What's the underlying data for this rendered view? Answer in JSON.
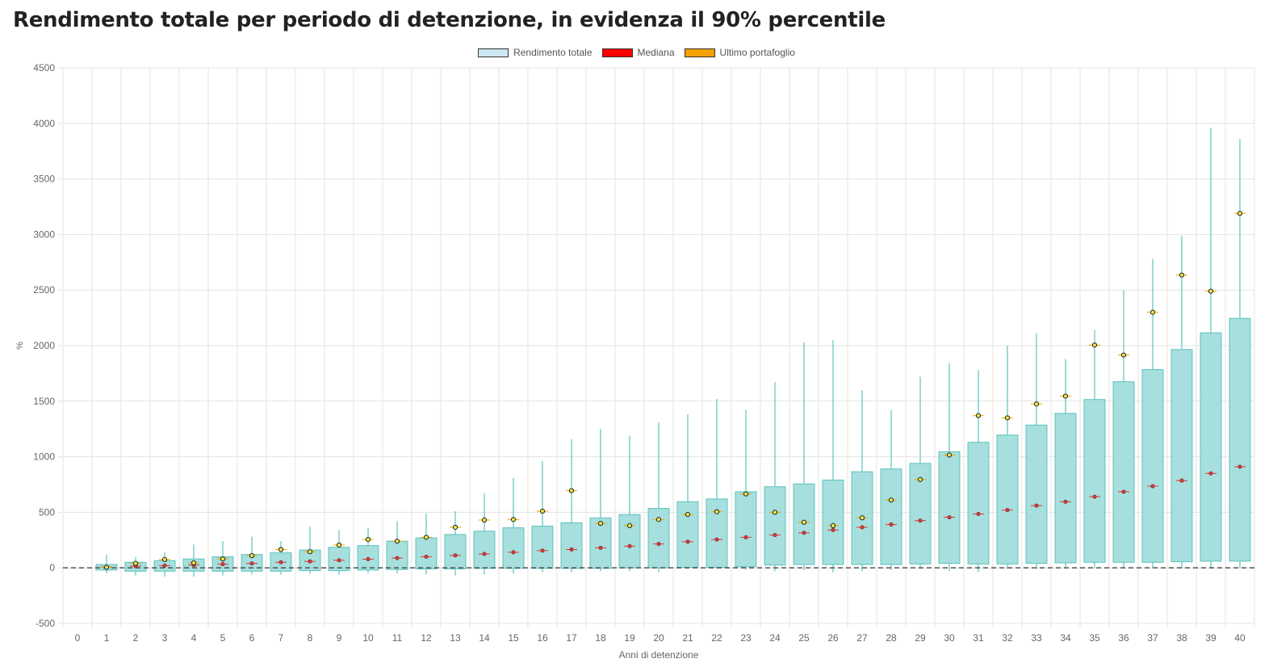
{
  "page": {
    "title": "Rendimento totale per periodo di detenzione, in evidenza il 90% percentile"
  },
  "colors": {
    "box_fill": "#a6dfdd",
    "box_stroke": "#5cc3bd",
    "whisker": "#5cc3bd",
    "median": "#d73a3a",
    "last_portfolio": "#f5a100",
    "grid": "#e3e3e3",
    "zero_line": "#444444"
  },
  "legend": {
    "items": [
      {
        "label": "Rendimento totale",
        "color": "#cde8f0"
      },
      {
        "label": "Mediana",
        "color": "#ff0000"
      },
      {
        "label": "Ultimo portafoglio",
        "color": "#f5a100"
      }
    ]
  },
  "chart_data": {
    "type": "boxplot",
    "xlabel": "Anni di detenzione",
    "ylabel": "%",
    "ylim": [
      -500,
      4500
    ],
    "yticks": [
      -500,
      0,
      500,
      1000,
      1500,
      2000,
      2500,
      3000,
      3500,
      4000,
      4500
    ],
    "categories": [
      0,
      1,
      2,
      3,
      4,
      5,
      6,
      7,
      8,
      9,
      10,
      11,
      12,
      13,
      14,
      15,
      16,
      17,
      18,
      19,
      20,
      21,
      22,
      23,
      24,
      25,
      26,
      27,
      28,
      29,
      30,
      31,
      32,
      33,
      34,
      35,
      36,
      37,
      38,
      39,
      40
    ],
    "grid": true,
    "legend_position": "top-center",
    "zero_line": "dashed",
    "series": [
      {
        "x": 1,
        "box_low": -20,
        "box_high": 30,
        "whisker_low": -50,
        "whisker_high": 120,
        "median": 8,
        "last": 5
      },
      {
        "x": 2,
        "box_low": -30,
        "box_high": 50,
        "whisker_low": -70,
        "whisker_high": 100,
        "median": 15,
        "last": 40
      },
      {
        "x": 3,
        "box_low": -30,
        "box_high": 65,
        "whisker_low": -80,
        "whisker_high": 140,
        "median": 20,
        "last": 75
      },
      {
        "x": 4,
        "box_low": -30,
        "box_high": 80,
        "whisker_low": -80,
        "whisker_high": 210,
        "median": 25,
        "last": 45
      },
      {
        "x": 5,
        "box_low": -30,
        "box_high": 100,
        "whisker_low": -70,
        "whisker_high": 240,
        "median": 33,
        "last": 80
      },
      {
        "x": 6,
        "box_low": -30,
        "box_high": 120,
        "whisker_low": -60,
        "whisker_high": 280,
        "median": 40,
        "last": 110
      },
      {
        "x": 7,
        "box_low": -30,
        "box_high": 135,
        "whisker_low": -60,
        "whisker_high": 240,
        "median": 50,
        "last": 165
      },
      {
        "x": 8,
        "box_low": -25,
        "box_high": 160,
        "whisker_low": -55,
        "whisker_high": 370,
        "median": 58,
        "last": 145
      },
      {
        "x": 9,
        "box_low": -25,
        "box_high": 185,
        "whisker_low": -60,
        "whisker_high": 340,
        "median": 68,
        "last": 205
      },
      {
        "x": 10,
        "box_low": -20,
        "box_high": 200,
        "whisker_low": -50,
        "whisker_high": 360,
        "median": 78,
        "last": 255
      },
      {
        "x": 11,
        "box_low": -15,
        "box_high": 240,
        "whisker_low": -50,
        "whisker_high": 420,
        "median": 88,
        "last": 240
      },
      {
        "x": 12,
        "box_low": -10,
        "box_high": 270,
        "whisker_low": -60,
        "whisker_high": 490,
        "median": 100,
        "last": 275
      },
      {
        "x": 13,
        "box_low": -10,
        "box_high": 300,
        "whisker_low": -70,
        "whisker_high": 510,
        "median": 112,
        "last": 365
      },
      {
        "x": 14,
        "box_low": -5,
        "box_high": 330,
        "whisker_low": -60,
        "whisker_high": 670,
        "median": 125,
        "last": 430
      },
      {
        "x": 15,
        "box_low": -5,
        "box_high": 360,
        "whisker_low": -50,
        "whisker_high": 810,
        "median": 140,
        "last": 435
      },
      {
        "x": 16,
        "box_low": -5,
        "box_high": 375,
        "whisker_low": -40,
        "whisker_high": 960,
        "median": 155,
        "last": 510
      },
      {
        "x": 17,
        "box_low": -5,
        "box_high": 405,
        "whisker_low": -40,
        "whisker_high": 1160,
        "median": 165,
        "last": 695
      },
      {
        "x": 18,
        "box_low": -5,
        "box_high": 450,
        "whisker_low": -30,
        "whisker_high": 1250,
        "median": 180,
        "last": 400
      },
      {
        "x": 19,
        "box_low": 0,
        "box_high": 480,
        "whisker_low": -30,
        "whisker_high": 1190,
        "median": 195,
        "last": 380
      },
      {
        "x": 20,
        "box_low": 0,
        "box_high": 535,
        "whisker_low": -40,
        "whisker_high": 1310,
        "median": 215,
        "last": 435
      },
      {
        "x": 21,
        "box_low": 5,
        "box_high": 595,
        "whisker_low": -10,
        "whisker_high": 1380,
        "median": 235,
        "last": 480
      },
      {
        "x": 22,
        "box_low": 5,
        "box_high": 620,
        "whisker_low": -10,
        "whisker_high": 1520,
        "median": 255,
        "last": 505
      },
      {
        "x": 23,
        "box_low": 10,
        "box_high": 685,
        "whisker_low": -20,
        "whisker_high": 1420,
        "median": 275,
        "last": 665
      },
      {
        "x": 24,
        "box_low": 25,
        "box_high": 730,
        "whisker_low": -30,
        "whisker_high": 1670,
        "median": 295,
        "last": 500
      },
      {
        "x": 25,
        "box_low": 30,
        "box_high": 755,
        "whisker_low": -20,
        "whisker_high": 2030,
        "median": 315,
        "last": 410
      },
      {
        "x": 26,
        "box_low": 30,
        "box_high": 790,
        "whisker_low": -40,
        "whisker_high": 2050,
        "median": 340,
        "last": 380
      },
      {
        "x": 27,
        "box_low": 30,
        "box_high": 865,
        "whisker_low": -30,
        "whisker_high": 1600,
        "median": 365,
        "last": 450
      },
      {
        "x": 28,
        "box_low": 30,
        "box_high": 890,
        "whisker_low": -20,
        "whisker_high": 1420,
        "median": 390,
        "last": 610
      },
      {
        "x": 29,
        "box_low": 35,
        "box_high": 940,
        "whisker_low": -10,
        "whisker_high": 1720,
        "median": 425,
        "last": 795
      },
      {
        "x": 30,
        "box_low": 40,
        "box_high": 1045,
        "whisker_low": -30,
        "whisker_high": 1840,
        "median": 455,
        "last": 1015
      },
      {
        "x": 31,
        "box_low": 35,
        "box_high": 1130,
        "whisker_low": -40,
        "whisker_high": 1780,
        "median": 485,
        "last": 1370
      },
      {
        "x": 32,
        "box_low": 35,
        "box_high": 1195,
        "whisker_low": -10,
        "whisker_high": 2000,
        "median": 520,
        "last": 1350
      },
      {
        "x": 33,
        "box_low": 40,
        "box_high": 1285,
        "whisker_low": -10,
        "whisker_high": 2110,
        "median": 560,
        "last": 1475
      },
      {
        "x": 34,
        "box_low": 45,
        "box_high": 1390,
        "whisker_low": 0,
        "whisker_high": 1880,
        "median": 595,
        "last": 1545
      },
      {
        "x": 35,
        "box_low": 50,
        "box_high": 1515,
        "whisker_low": 0,
        "whisker_high": 2140,
        "median": 640,
        "last": 2005
      },
      {
        "x": 36,
        "box_low": 50,
        "box_high": 1675,
        "whisker_low": 0,
        "whisker_high": 2500,
        "median": 685,
        "last": 1915
      },
      {
        "x": 37,
        "box_low": 50,
        "box_high": 1785,
        "whisker_low": 0,
        "whisker_high": 2780,
        "median": 735,
        "last": 2300
      },
      {
        "x": 38,
        "box_low": 55,
        "box_high": 1965,
        "whisker_low": 0,
        "whisker_high": 2990,
        "median": 785,
        "last": 2635
      },
      {
        "x": 39,
        "box_low": 60,
        "box_high": 2115,
        "whisker_low": 0,
        "whisker_high": 3960,
        "median": 850,
        "last": 2490
      },
      {
        "x": 40,
        "box_low": 60,
        "box_high": 2245,
        "whisker_low": 0,
        "whisker_high": 3860,
        "median": 910,
        "last": 3190
      }
    ]
  }
}
